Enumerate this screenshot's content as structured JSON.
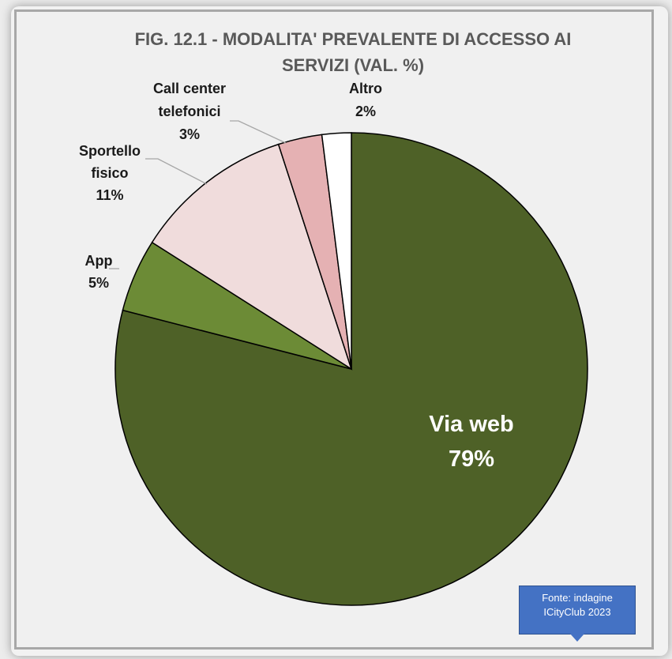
{
  "title_lines": [
    "FIG. 12.1  -  MODALITA' PREVALENTE DI ACCESSO AI",
    "SERVIZI (VAL. %)"
  ],
  "source": {
    "line1": "Fonte:  indagine",
    "line2": "ICityClub 2023"
  },
  "chart_data": {
    "type": "pie",
    "title": "FIG. 12.1  -  MODALITA' PREVALENTE DI ACCESSO AI SERVIZI (VAL. %)",
    "categories": [
      "Via web",
      "App",
      "Sportello fisico",
      "Call center telefonici",
      "Altro"
    ],
    "values": [
      79,
      5,
      11,
      3,
      2
    ],
    "value_labels": [
      "79%",
      "5%",
      "11%",
      "3%",
      "2%"
    ],
    "colors": [
      "#4e6127",
      "#6c8b36",
      "#f0dcdc",
      "#e5b1b3",
      "#ffffff"
    ],
    "start_angle": "12 o'clock",
    "direction": "clockwise",
    "slice_border_color": "#000000"
  }
}
